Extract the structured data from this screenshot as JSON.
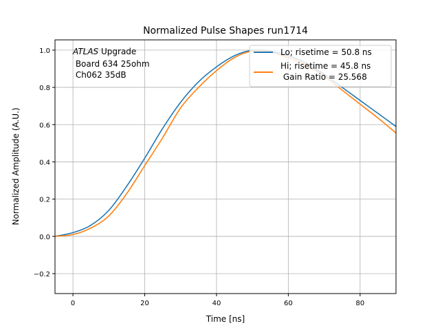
{
  "chart_data": {
    "type": "line",
    "title": "Normalized Pulse Shapes run1714",
    "xlabel": "Time [ns]",
    "ylabel": "Normalized Amplitude (A.U.)",
    "xlim": [
      -5,
      90
    ],
    "ylim": [
      -0.307,
      1.055
    ],
    "grid": true,
    "legend_placement": "top-right",
    "xticks": [
      0,
      20,
      40,
      60,
      80
    ],
    "xtick_labels": [
      "0",
      "20",
      "40",
      "60",
      "80"
    ],
    "yticks": [
      -0.2,
      0,
      0.2,
      0.4,
      0.6,
      0.8,
      1.0
    ],
    "ytick_labels": [
      "−0.2",
      "0.0",
      "0.2",
      "0.4",
      "0.6",
      "0.8",
      "1.0"
    ],
    "annotation": {
      "italic": "ATLAS",
      "lines": [
        " Upgrade",
        " Board 634 25ohm",
        " Ch062 35dB"
      ]
    },
    "x": [
      -5,
      0,
      5,
      10,
      15,
      20,
      25,
      30,
      35,
      40,
      45,
      50,
      55,
      60,
      65,
      70,
      75,
      80,
      85,
      90
    ],
    "series": [
      {
        "name": "Lo; risetime = 50.8 ns",
        "color": "#1f77b4",
        "values": [
          0.0,
          0.02,
          0.06,
          0.14,
          0.27,
          0.42,
          0.58,
          0.72,
          0.83,
          0.91,
          0.97,
          1.0,
          0.995,
          0.97,
          0.93,
          0.87,
          0.8,
          0.73,
          0.66,
          0.59
        ]
      },
      {
        "name": "Hi; risetime = 45.8 ns",
        "name_line2": " Gain Ratio = 25.568",
        "color": "#ff7f0e",
        "values": [
          0.0,
          0.01,
          0.045,
          0.11,
          0.23,
          0.38,
          0.53,
          0.69,
          0.8,
          0.89,
          0.96,
          0.995,
          0.99,
          0.96,
          0.92,
          0.86,
          0.785,
          0.71,
          0.635,
          0.555
        ]
      }
    ]
  }
}
